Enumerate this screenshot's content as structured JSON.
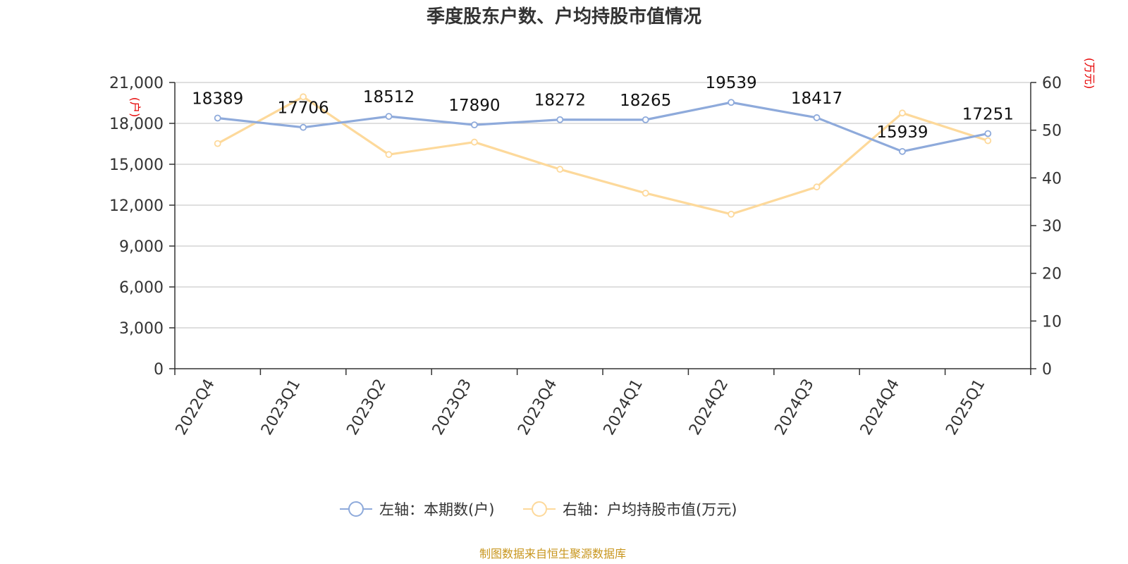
{
  "chart_data": {
    "type": "line",
    "title": "季度股东户数、户均持股市值情况",
    "categories": [
      "2022Q4",
      "2023Q1",
      "2023Q2",
      "2023Q3",
      "2023Q4",
      "2024Q1",
      "2024Q2",
      "2024Q3",
      "2024Q4",
      "2025Q1"
    ],
    "series": [
      {
        "name": "左轴：本期数(户)",
        "axis": "left",
        "color": "#8eaadb",
        "values": [
          18389,
          17706,
          18512,
          17890,
          18272,
          18265,
          19539,
          18417,
          15939,
          17251
        ],
        "show_labels": true
      },
      {
        "name": "右轴：户均持股市值(万元)",
        "axis": "right",
        "color": "#fdd99b",
        "values": [
          47.2,
          57.0,
          44.9,
          47.5,
          41.8,
          36.8,
          32.4,
          38.1,
          53.6,
          47.8
        ],
        "show_labels": false
      }
    ],
    "y_left": {
      "unit_label": "(户)",
      "ylim": [
        0,
        21000
      ],
      "ticks": [
        "0",
        "3,000",
        "6,000",
        "9,000",
        "12,000",
        "15,000",
        "18,000",
        "21,000"
      ],
      "tick_values": [
        0,
        3000,
        6000,
        9000,
        12000,
        15000,
        18000,
        21000
      ]
    },
    "y_right": {
      "unit_label": "(万元)",
      "ylim": [
        0,
        60
      ],
      "ticks": [
        "0",
        "10",
        "20",
        "30",
        "40",
        "50",
        "60"
      ],
      "tick_values": [
        0,
        10,
        20,
        30,
        40,
        50,
        60
      ]
    },
    "grid": true,
    "legend_position": "bottom-center"
  },
  "source_text": "制图数据来自恒生聚源数据库"
}
